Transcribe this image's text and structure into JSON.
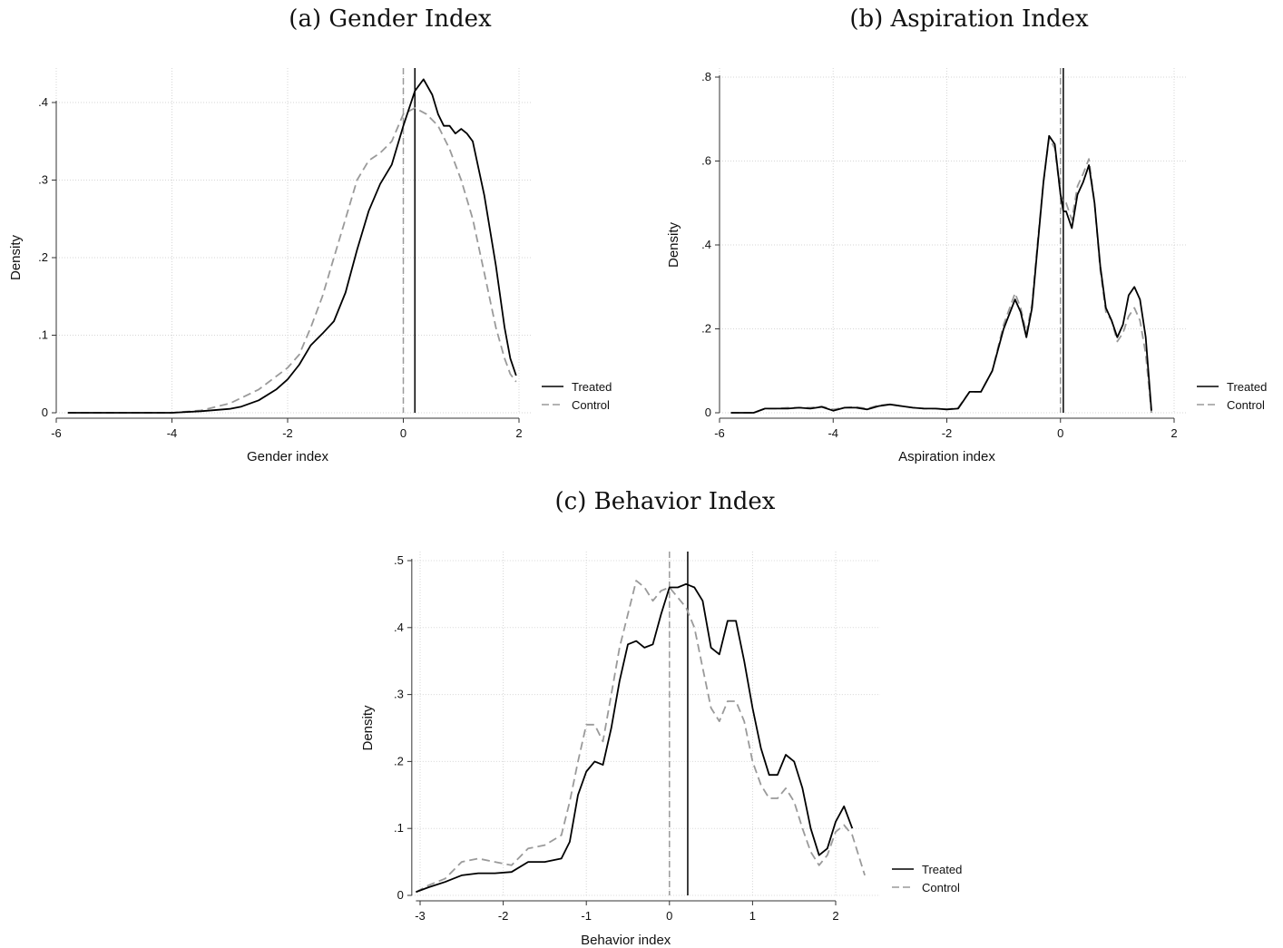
{
  "chart_data": [
    {
      "type": "line",
      "title": "(a) Gender Index",
      "xlabel": "Gender index",
      "ylabel": "Density",
      "xlim": [
        -6,
        2
      ],
      "ylim": [
        0,
        0.4
      ],
      "xticks": [
        -6,
        -4,
        -2,
        0,
        2
      ],
      "xtick_labels": [
        "-6",
        "-4",
        "-2",
        "0",
        "2"
      ],
      "yticks": [
        0,
        0.1,
        0.2,
        0.3,
        0.4
      ],
      "ytick_labels": [
        "0",
        ".1",
        ".2",
        ".3",
        ".4"
      ],
      "grid": true,
      "legend": "right",
      "vlines": [
        {
          "x": 0.2,
          "series": "Treated"
        },
        {
          "x": 0.0,
          "series": "Control"
        }
      ],
      "series": [
        {
          "name": "Treated",
          "style": "solid",
          "color": "#000000",
          "x": [
            -5.8,
            -5.0,
            -4.0,
            -3.5,
            -3.0,
            -2.8,
            -2.5,
            -2.2,
            -2.0,
            -1.8,
            -1.6,
            -1.4,
            -1.2,
            -1.0,
            -0.8,
            -0.6,
            -0.4,
            -0.2,
            0.0,
            0.2,
            0.35,
            0.5,
            0.6,
            0.7,
            0.8,
            0.9,
            1.0,
            1.1,
            1.2,
            1.4,
            1.6,
            1.75,
            1.85,
            1.95
          ],
          "y": [
            0.0,
            0.0,
            0.0,
            0.002,
            0.005,
            0.008,
            0.016,
            0.03,
            0.043,
            0.062,
            0.087,
            0.102,
            0.118,
            0.155,
            0.21,
            0.26,
            0.295,
            0.32,
            0.37,
            0.415,
            0.43,
            0.41,
            0.385,
            0.37,
            0.37,
            0.36,
            0.366,
            0.36,
            0.35,
            0.28,
            0.19,
            0.11,
            0.07,
            0.048
          ]
        },
        {
          "name": "Control",
          "style": "dashed",
          "color": "#9a9a9a",
          "x": [
            -5.8,
            -5.0,
            -4.0,
            -3.5,
            -3.0,
            -2.5,
            -2.0,
            -1.8,
            -1.6,
            -1.4,
            -1.2,
            -1.0,
            -0.8,
            -0.6,
            -0.4,
            -0.2,
            0.0,
            0.2,
            0.4,
            0.6,
            0.8,
            1.0,
            1.2,
            1.4,
            1.6,
            1.75,
            1.85,
            1.95
          ],
          "y": [
            0.0,
            0.0,
            0.0,
            0.003,
            0.012,
            0.03,
            0.058,
            0.075,
            0.11,
            0.15,
            0.2,
            0.25,
            0.3,
            0.325,
            0.335,
            0.35,
            0.385,
            0.393,
            0.385,
            0.37,
            0.34,
            0.3,
            0.25,
            0.18,
            0.11,
            0.07,
            0.05,
            0.04
          ]
        }
      ]
    },
    {
      "type": "line",
      "title": "(b) Aspiration Index",
      "xlabel": "Aspiration index",
      "ylabel": "Density",
      "xlim": [
        -6,
        2
      ],
      "ylim": [
        0,
        0.8
      ],
      "xticks": [
        -6,
        -4,
        -2,
        0,
        2
      ],
      "xtick_labels": [
        "-6",
        "-4",
        "-2",
        "0",
        "2"
      ],
      "yticks": [
        0,
        0.2,
        0.4,
        0.6,
        0.8
      ],
      "ytick_labels": [
        "0",
        ".2",
        ".4",
        ".6",
        ".8"
      ],
      "grid": true,
      "legend": "right",
      "vlines": [
        {
          "x": 0.05,
          "series": "Treated"
        },
        {
          "x": 0.0,
          "series": "Control"
        }
      ],
      "series": [
        {
          "name": "Treated",
          "style": "solid",
          "color": "#000000",
          "x": [
            -5.8,
            -5.4,
            -5.2,
            -5.0,
            -4.8,
            -4.6,
            -4.4,
            -4.2,
            -4.0,
            -3.8,
            -3.6,
            -3.4,
            -3.2,
            -3.0,
            -2.8,
            -2.6,
            -2.4,
            -2.2,
            -2.0,
            -1.8,
            -1.6,
            -1.4,
            -1.2,
            -1.0,
            -0.8,
            -0.7,
            -0.6,
            -0.5,
            -0.4,
            -0.3,
            -0.2,
            -0.1,
            0.0,
            0.05,
            0.1,
            0.2,
            0.3,
            0.4,
            0.5,
            0.6,
            0.7,
            0.8,
            0.9,
            1.0,
            1.1,
            1.2,
            1.3,
            1.4,
            1.5,
            1.6
          ],
          "y": [
            0.0,
            0.0,
            0.01,
            0.01,
            0.01,
            0.012,
            0.01,
            0.014,
            0.005,
            0.012,
            0.012,
            0.008,
            0.016,
            0.02,
            0.016,
            0.012,
            0.01,
            0.01,
            0.008,
            0.01,
            0.05,
            0.05,
            0.1,
            0.2,
            0.27,
            0.24,
            0.18,
            0.25,
            0.4,
            0.55,
            0.66,
            0.64,
            0.52,
            0.48,
            0.48,
            0.44,
            0.52,
            0.55,
            0.59,
            0.5,
            0.35,
            0.25,
            0.22,
            0.18,
            0.21,
            0.28,
            0.3,
            0.27,
            0.18,
            0.005
          ]
        },
        {
          "name": "Control",
          "style": "dashed",
          "color": "#9a9a9a",
          "x": [
            -5.8,
            -5.4,
            -5.2,
            -5.0,
            -4.8,
            -4.6,
            -4.4,
            -4.2,
            -4.0,
            -3.8,
            -3.6,
            -3.4,
            -3.2,
            -3.0,
            -2.8,
            -2.6,
            -2.4,
            -2.2,
            -2.0,
            -1.8,
            -1.6,
            -1.4,
            -1.2,
            -1.0,
            -0.8,
            -0.7,
            -0.6,
            -0.5,
            -0.4,
            -0.3,
            -0.2,
            -0.1,
            0.0,
            0.05,
            0.1,
            0.2,
            0.3,
            0.4,
            0.5,
            0.6,
            0.7,
            0.8,
            0.9,
            1.0,
            1.1,
            1.2,
            1.3,
            1.4,
            1.5,
            1.6
          ],
          "y": [
            0.0,
            0.0,
            0.01,
            0.01,
            0.012,
            0.012,
            0.012,
            0.015,
            0.008,
            0.012,
            0.014,
            0.01,
            0.018,
            0.02,
            0.016,
            0.012,
            0.01,
            0.01,
            0.008,
            0.012,
            0.05,
            0.05,
            0.1,
            0.21,
            0.285,
            0.25,
            0.19,
            0.26,
            0.41,
            0.55,
            0.655,
            0.63,
            0.52,
            0.5,
            0.5,
            0.46,
            0.54,
            0.57,
            0.605,
            0.5,
            0.34,
            0.24,
            0.22,
            0.17,
            0.19,
            0.23,
            0.25,
            0.22,
            0.14,
            0.0
          ]
        }
      ]
    },
    {
      "type": "line",
      "title": "(c) Behavior Index",
      "xlabel": "Behavior index",
      "ylabel": "Density",
      "xlim": [
        -3.1,
        2.4
      ],
      "ylim": [
        0,
        0.5
      ],
      "xticks": [
        -3,
        -2,
        -1,
        0,
        1,
        2
      ],
      "xtick_labels": [
        "-3",
        "-2",
        "-1",
        "0",
        "1",
        "2"
      ],
      "yticks": [
        0,
        0.1,
        0.2,
        0.3,
        0.4,
        0.5
      ],
      "ytick_labels": [
        "0",
        ".1",
        ".2",
        ".3",
        ".4",
        ".5"
      ],
      "grid": true,
      "legend": "right",
      "vlines": [
        {
          "x": 0.22,
          "series": "Treated"
        },
        {
          "x": 0.0,
          "series": "Control"
        }
      ],
      "series": [
        {
          "name": "Treated",
          "style": "solid",
          "color": "#000000",
          "x": [
            -3.05,
            -2.9,
            -2.7,
            -2.5,
            -2.3,
            -2.1,
            -1.9,
            -1.7,
            -1.5,
            -1.3,
            -1.2,
            -1.1,
            -1.0,
            -0.9,
            -0.8,
            -0.7,
            -0.6,
            -0.5,
            -0.4,
            -0.3,
            -0.2,
            -0.1,
            0.0,
            0.1,
            0.2,
            0.3,
            0.4,
            0.5,
            0.6,
            0.7,
            0.8,
            0.9,
            1.0,
            1.1,
            1.2,
            1.3,
            1.4,
            1.5,
            1.6,
            1.7,
            1.8,
            1.9,
            2.0,
            2.1,
            2.2
          ],
          "y": [
            0.005,
            0.012,
            0.02,
            0.03,
            0.033,
            0.033,
            0.035,
            0.05,
            0.05,
            0.055,
            0.08,
            0.15,
            0.185,
            0.2,
            0.195,
            0.25,
            0.32,
            0.375,
            0.38,
            0.37,
            0.375,
            0.42,
            0.46,
            0.46,
            0.465,
            0.46,
            0.44,
            0.37,
            0.36,
            0.41,
            0.41,
            0.35,
            0.28,
            0.22,
            0.18,
            0.18,
            0.21,
            0.2,
            0.16,
            0.1,
            0.06,
            0.07,
            0.11,
            0.133,
            0.1
          ]
        },
        {
          "name": "Control",
          "style": "dashed",
          "color": "#9a9a9a",
          "x": [
            -3.05,
            -2.9,
            -2.7,
            -2.5,
            -2.3,
            -2.1,
            -1.9,
            -1.7,
            -1.5,
            -1.3,
            -1.2,
            -1.1,
            -1.0,
            -0.9,
            -0.8,
            -0.7,
            -0.6,
            -0.5,
            -0.4,
            -0.3,
            -0.2,
            -0.1,
            0.0,
            0.1,
            0.2,
            0.3,
            0.4,
            0.5,
            0.6,
            0.7,
            0.8,
            0.9,
            1.0,
            1.1,
            1.2,
            1.3,
            1.4,
            1.5,
            1.6,
            1.7,
            1.8,
            1.9,
            2.0,
            2.1,
            2.2,
            2.35
          ],
          "y": [
            0.005,
            0.015,
            0.025,
            0.05,
            0.055,
            0.05,
            0.045,
            0.07,
            0.075,
            0.09,
            0.14,
            0.2,
            0.255,
            0.255,
            0.23,
            0.3,
            0.37,
            0.42,
            0.47,
            0.46,
            0.44,
            0.455,
            0.46,
            0.445,
            0.43,
            0.4,
            0.34,
            0.28,
            0.26,
            0.29,
            0.29,
            0.26,
            0.2,
            0.165,
            0.145,
            0.145,
            0.16,
            0.14,
            0.1,
            0.065,
            0.045,
            0.06,
            0.095,
            0.105,
            0.09,
            0.03
          ]
        }
      ]
    }
  ],
  "legend_labels": {
    "treated": "Treated",
    "control": "Control"
  },
  "colors": {
    "treated": "#000000",
    "control": "#9a9a9a",
    "grid": "#d6d6d6",
    "axis": "#333333"
  }
}
